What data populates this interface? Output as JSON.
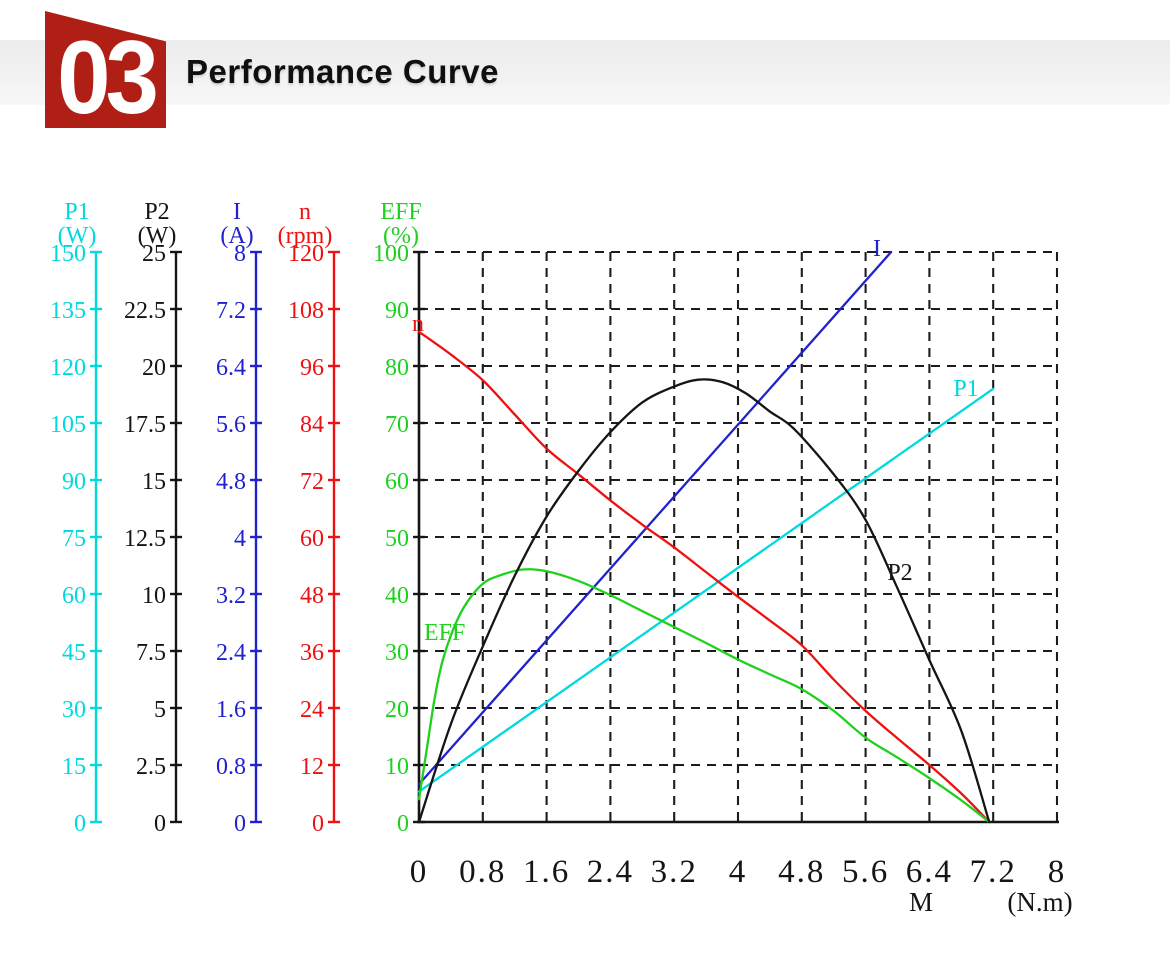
{
  "header": {
    "index": "03",
    "title": "Performance Curve"
  },
  "colors": {
    "badge": "#b01f16",
    "cyan": "#00d9dd",
    "black": "#151515",
    "blue": "#2121cd",
    "red": "#ee1111",
    "green": "#1fd01f",
    "grid": "#1c1c1c"
  },
  "chart_data": {
    "type": "line",
    "title": "Performance Curve",
    "grid": "dashed",
    "x_axis": {
      "label": "M",
      "unit": "(N.m)",
      "range": [
        0,
        8
      ],
      "ticks": [
        "0",
        "0.8",
        "1.6",
        "2.4",
        "3.2",
        "4",
        "4.8",
        "5.6",
        "6.4",
        "7.2",
        "8"
      ]
    },
    "y_axes": [
      {
        "name": "P1",
        "unit": "(W)",
        "color_key": "cyan",
        "max": 150,
        "ticks": [
          "150",
          "135",
          "120",
          "105",
          "90",
          "75",
          "60",
          "45",
          "30",
          "15",
          "0"
        ]
      },
      {
        "name": "P2",
        "unit": "(W)",
        "color_key": "black",
        "max": 25,
        "ticks": [
          "25",
          "22.5",
          "20",
          "17.5",
          "15",
          "12.5",
          "10",
          "7.5",
          "5",
          "2.5",
          "0"
        ]
      },
      {
        "name": "I",
        "unit": "(A)",
        "color_key": "blue",
        "max": 8,
        "ticks": [
          "8",
          "7.2",
          "6.4",
          "5.6",
          "4.8",
          "4",
          "3.2",
          "2.4",
          "1.6",
          "0.8",
          "0"
        ]
      },
      {
        "name": "n",
        "unit": "(rpm)",
        "color_key": "red",
        "max": 120,
        "ticks": [
          "120",
          "108",
          "96",
          "84",
          "72",
          "60",
          "48",
          "36",
          "24",
          "12",
          "0"
        ]
      },
      {
        "name": "EFF",
        "unit": "(%)",
        "color_key": "green",
        "max": 100,
        "ticks": [
          "100",
          "90",
          "80",
          "70",
          "60",
          "50",
          "40",
          "30",
          "20",
          "10",
          "0"
        ]
      }
    ],
    "series": [
      {
        "name": "P1",
        "unit": "W",
        "axis_max": 150,
        "color_key": "cyan",
        "points": [
          [
            0,
            8
          ],
          [
            7.2,
            114
          ]
        ]
      },
      {
        "name": "I",
        "unit": "A",
        "axis_max": 8,
        "color_key": "blue",
        "points": [
          [
            0,
            0.53
          ],
          [
            5.92,
            8
          ]
        ]
      },
      {
        "name": "n",
        "unit": "rpm",
        "axis_max": 120,
        "color_key": "red",
        "points": [
          [
            0,
            103.2
          ],
          [
            0.4,
            98.4
          ],
          [
            0.8,
            93
          ],
          [
            1.2,
            85.8
          ],
          [
            1.6,
            78.6
          ],
          [
            2,
            73.2
          ],
          [
            2.4,
            67.7
          ],
          [
            2.8,
            62.6
          ],
          [
            3.2,
            57.8
          ],
          [
            3.6,
            52.6
          ],
          [
            4,
            47.4
          ],
          [
            4.4,
            42.4
          ],
          [
            4.8,
            37.2
          ],
          [
            5.2,
            30
          ],
          [
            5.6,
            23.4
          ],
          [
            6,
            17.6
          ],
          [
            6.4,
            12
          ],
          [
            6.8,
            6
          ],
          [
            7.15,
            0
          ]
        ]
      },
      {
        "name": "EFF",
        "unit": "%",
        "axis_max": 100,
        "color_key": "green",
        "points": [
          [
            0,
            4
          ],
          [
            0.05,
            8.5
          ],
          [
            0.1,
            13
          ],
          [
            0.2,
            22
          ],
          [
            0.3,
            28.5
          ],
          [
            0.45,
            34.5
          ],
          [
            0.6,
            38.5
          ],
          [
            0.8,
            41.8
          ],
          [
            1,
            43.2
          ],
          [
            1.3,
            44.3
          ],
          [
            1.6,
            44
          ],
          [
            2,
            42.3
          ],
          [
            2.4,
            39.8
          ],
          [
            2.8,
            37
          ],
          [
            3.2,
            34.2
          ],
          [
            3.6,
            31.4
          ],
          [
            4,
            28.5
          ],
          [
            4.4,
            25.9
          ],
          [
            4.8,
            23.3
          ],
          [
            5.2,
            19.5
          ],
          [
            5.6,
            14.8
          ],
          [
            6,
            11.3
          ],
          [
            6.4,
            7.7
          ],
          [
            6.8,
            3.8
          ],
          [
            7.15,
            0
          ]
        ]
      },
      {
        "name": "P2",
        "unit": "W",
        "axis_max": 25,
        "color_key": "black",
        "points": [
          [
            0,
            0
          ],
          [
            0.4,
            4.3
          ],
          [
            0.8,
            7.7
          ],
          [
            1.2,
            10.8
          ],
          [
            1.6,
            13.4
          ],
          [
            2,
            15.4
          ],
          [
            2.4,
            17.1
          ],
          [
            2.8,
            18.4
          ],
          [
            3.2,
            19.1
          ],
          [
            3.5,
            19.4
          ],
          [
            3.8,
            19.3
          ],
          [
            4.1,
            18.8
          ],
          [
            4.4,
            18
          ],
          [
            4.7,
            17.25
          ],
          [
            5.2,
            15.25
          ],
          [
            5.6,
            13.25
          ],
          [
            6,
            10.25
          ],
          [
            6.4,
            7.1
          ],
          [
            6.8,
            4
          ],
          [
            7.15,
            0
          ]
        ]
      }
    ],
    "curve_labels": [
      {
        "series": "n",
        "text": "n"
      },
      {
        "series": "I",
        "text": "I"
      },
      {
        "series": "P1",
        "text": "P1"
      },
      {
        "series": "P2",
        "text": "P2"
      },
      {
        "series": "EFF",
        "text": "EFF"
      }
    ]
  }
}
